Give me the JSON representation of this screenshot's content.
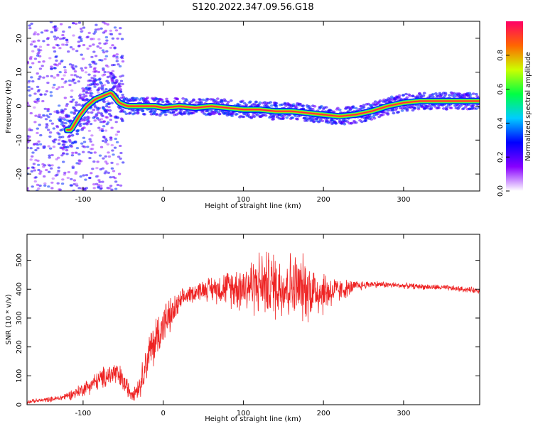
{
  "title": "S120.2022.347.09.56.G18",
  "chart_data": [
    {
      "type": "heatmap",
      "title": "S120.2022.347.09.56.G18",
      "xlabel": "Height of straight line (km)",
      "ylabel": "Frequency (Hz)",
      "xlim": [
        -170,
        395
      ],
      "ylim": [
        -25,
        25
      ],
      "xticks": [
        -100,
        0,
        100,
        200,
        300
      ],
      "yticks": [
        -20,
        -10,
        0,
        10,
        20
      ],
      "colorbar": {
        "label": "Normalized spectral amplitude",
        "range": [
          0,
          1
        ],
        "ticks": [
          "0.0",
          "0.2",
          "0.4",
          "0.6",
          "0.8"
        ],
        "colors": [
          "#ffffff",
          "#8800ff",
          "#0000ff",
          "#00ccff",
          "#00ff44",
          "#ccff00",
          "#ff6600",
          "#ff0066"
        ]
      },
      "ridge": {
        "x": [
          -115,
          -105,
          -95,
          -85,
          -75,
          -65,
          -55,
          -45,
          -30,
          -10,
          0,
          20,
          40,
          60,
          80,
          100,
          120,
          140,
          160,
          180,
          200,
          220,
          240,
          260,
          280,
          300,
          320,
          395
        ],
        "y": [
          -7,
          -3,
          0,
          2,
          3,
          4,
          1,
          0,
          0,
          0,
          -0.5,
          0,
          -0.5,
          0,
          -0.5,
          -1,
          -1,
          -1.5,
          -1.5,
          -2,
          -2.5,
          -3,
          -2.5,
          -1.5,
          0,
          1,
          1.5,
          1.5
        ]
      },
      "grid": false
    },
    {
      "type": "line",
      "xlabel": "Height of straight line (km)",
      "ylabel": "SNR (10 * v/v)",
      "xlim": [
        -170,
        395
      ],
      "ylim": [
        0,
        590
      ],
      "xticks": [
        -100,
        0,
        100,
        200,
        300
      ],
      "yticks": [
        0,
        100,
        200,
        300,
        400,
        500
      ],
      "series": [
        {
          "color": "#ee2222",
          "envelope_x": [
            -170,
            -130,
            -110,
            -90,
            -70,
            -60,
            -50,
            -40,
            -30,
            -20,
            -10,
            0,
            10,
            20,
            30,
            50,
            80,
            100,
            120,
            140,
            160,
            180,
            200,
            220,
            240,
            260,
            300,
            350,
            395
          ],
          "envelope_mean": [
            10,
            22,
            40,
            70,
            100,
            110,
            80,
            40,
            60,
            160,
            220,
            280,
            310,
            350,
            380,
            400,
            405,
            410,
            420,
            415,
            410,
            400,
            390,
            395,
            410,
            418,
            412,
            405,
            395
          ],
          "envelope_spread": [
            6,
            10,
            20,
            30,
            40,
            50,
            40,
            25,
            40,
            70,
            90,
            70,
            60,
            40,
            30,
            35,
            60,
            90,
            110,
            120,
            120,
            110,
            80,
            40,
            20,
            12,
            10,
            10,
            10
          ]
        }
      ],
      "grid": false
    }
  ]
}
